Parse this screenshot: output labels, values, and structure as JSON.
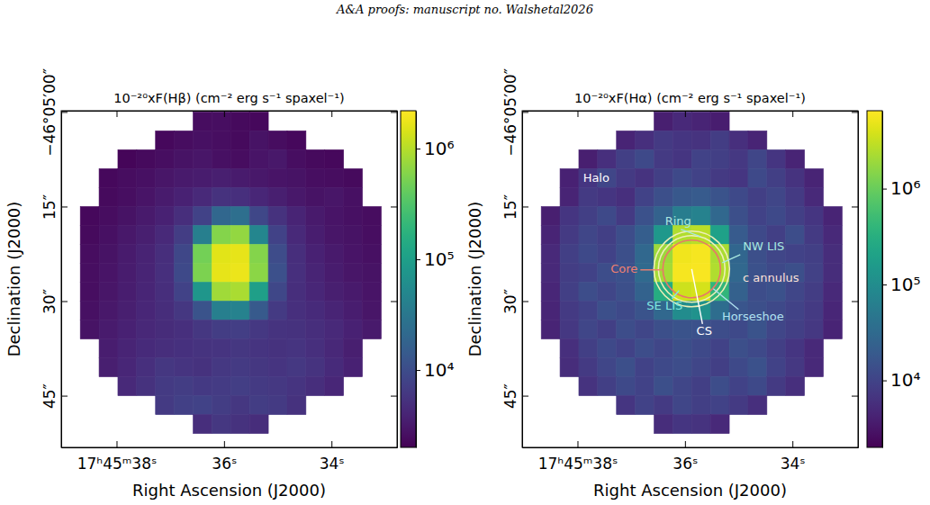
{
  "header": "A&A proofs: manuscript no. Walshetal2026",
  "chart_data": [
    {
      "type": "heatmap",
      "title": "10⁻²⁰xF(Hβ) (cm⁻² erg s⁻¹ spaxel⁻¹)",
      "x_label": "Right Ascension (J2000)",
      "y_label": "Declination (J2000)",
      "xlim": [
        39.03,
        32.78
      ],
      "ylim": [
        -0.2,
        53.2
      ],
      "xticks": [
        {
          "value": 38,
          "label": "17ʰ45ᵐ38ˢ"
        },
        {
          "value": 36,
          "label": "36ˢ"
        },
        {
          "value": 34,
          "label": "34ˢ"
        }
      ],
      "yticks": [
        {
          "value": 0,
          "label": "−46°05′00″"
        },
        {
          "value": 15,
          "label": "15″"
        },
        {
          "value": 30,
          "label": "30″"
        },
        {
          "value": 45,
          "label": "45″"
        }
      ],
      "log": true,
      "colorbar": {
        "lim": [
          2000,
          2200000
        ],
        "ticks": [
          {
            "value": 10000,
            "label": "10⁴"
          },
          {
            "value": 100000,
            "label": "10⁵"
          },
          {
            "value": 1000000,
            "label": "10⁶"
          }
        ]
      },
      "x": [
        38.85,
        38.5,
        38.15,
        37.8,
        37.45,
        37.1,
        36.75,
        36.4,
        36.05,
        35.7,
        35.35,
        35.0,
        34.65,
        34.3,
        33.95,
        33.6,
        33.25,
        32.9
      ],
      "y": [
        1.5,
        4.5,
        7.5,
        10.5,
        13.5,
        16.5,
        19.5,
        22.5,
        25.5,
        28.5,
        31.5,
        34.5,
        37.5,
        40.5,
        43.5,
        46.5,
        49.5,
        52.5
      ],
      "values": [
        [
          null,
          null,
          null,
          null,
          null,
          null,
          null,
          2500,
          2600,
          2400,
          2300,
          null,
          null,
          null,
          null,
          null,
          null,
          null
        ],
        [
          null,
          null,
          null,
          null,
          null,
          2300,
          2500,
          2700,
          2600,
          2400,
          2800,
          2500,
          2300,
          null,
          null,
          null,
          null,
          null
        ],
        [
          null,
          null,
          null,
          2200,
          2400,
          2600,
          2800,
          3000,
          2700,
          2500,
          2900,
          3100,
          2600,
          2400,
          2300,
          null,
          null,
          null
        ],
        [
          null,
          null,
          2300,
          2500,
          2700,
          3000,
          3200,
          3400,
          3600,
          3300,
          3100,
          2900,
          2800,
          2600,
          2500,
          2400,
          null,
          null
        ],
        [
          null,
          null,
          2400,
          2600,
          2900,
          3300,
          3800,
          4500,
          5500,
          5200,
          4300,
          3600,
          3100,
          2800,
          3000,
          2700,
          null,
          null
        ],
        [
          null,
          2300,
          2500,
          2800,
          3200,
          3800,
          5000,
          8000,
          20000,
          25000,
          9000,
          5500,
          4000,
          3200,
          2900,
          2700,
          2500,
          null
        ],
        [
          null,
          2400,
          2700,
          3100,
          3600,
          4500,
          7000,
          40000,
          600000,
          700000,
          50000,
          8000,
          4500,
          3500,
          3000,
          2800,
          2600,
          null
        ],
        [
          null,
          2500,
          2800,
          3300,
          3900,
          5000,
          9000,
          500000,
          1600000,
          1700000,
          600000,
          10000,
          5000,
          3800,
          3200,
          2900,
          2700,
          null
        ],
        [
          null,
          2600,
          2900,
          3400,
          4000,
          5200,
          9500,
          550000,
          1700000,
          1800000,
          650000,
          11000,
          5200,
          4000,
          3400,
          3000,
          2800,
          null
        ],
        [
          null,
          2600,
          3000,
          3500,
          4100,
          5000,
          8000,
          80000,
          800000,
          900000,
          100000,
          9000,
          5000,
          4200,
          3600,
          3200,
          2900,
          null
        ],
        [
          null,
          2700,
          3100,
          3600,
          4200,
          4800,
          6000,
          12000,
          40000,
          45000,
          14000,
          6500,
          5200,
          4600,
          4000,
          3500,
          3000,
          null
        ],
        [
          null,
          2800,
          3300,
          3800,
          4400,
          4700,
          5200,
          6000,
          7000,
          7200,
          6300,
          5600,
          5400,
          5000,
          4500,
          3800,
          3200,
          null
        ],
        [
          null,
          null,
          3500,
          4000,
          4600,
          5000,
          5300,
          5600,
          5800,
          6000,
          5800,
          5500,
          5800,
          5200,
          4400,
          3600,
          null,
          null
        ],
        [
          null,
          null,
          3600,
          4200,
          5200,
          6000,
          5800,
          5500,
          6200,
          6500,
          6000,
          5800,
          6200,
          5600,
          4600,
          3800,
          null,
          null
        ],
        [
          null,
          null,
          null,
          4500,
          5500,
          6500,
          7000,
          6400,
          6800,
          7200,
          6600,
          6300,
          5800,
          5000,
          4200,
          null,
          null,
          null
        ],
        [
          null,
          null,
          null,
          null,
          null,
          6500,
          7500,
          8000,
          7000,
          6000,
          7000,
          6500,
          5500,
          null,
          null,
          null,
          null,
          null
        ],
        [
          null,
          null,
          null,
          null,
          null,
          null,
          null,
          5000,
          6000,
          5500,
          4800,
          null,
          null,
          null,
          null,
          null,
          null,
          null
        ],
        [
          null,
          null,
          null,
          null,
          null,
          null,
          null,
          null,
          null,
          null,
          null,
          null,
          null,
          null,
          null,
          null,
          null,
          null
        ]
      ]
    },
    {
      "type": "heatmap",
      "title": "10⁻²⁰xF(Hα) (cm⁻² erg s⁻¹ spaxel⁻¹)",
      "x_label": "Right Ascension (J2000)",
      "y_label": "Declination (J2000)",
      "xlim": [
        39.03,
        32.78
      ],
      "ylim": [
        -0.2,
        53.2
      ],
      "xticks": [
        {
          "value": 38,
          "label": "17ʰ45ᵐ38ˢ"
        },
        {
          "value": 36,
          "label": "36ˢ"
        },
        {
          "value": 34,
          "label": "34ˢ"
        }
      ],
      "yticks": [
        {
          "value": 0,
          "label": "−46°05′00″"
        },
        {
          "value": 15,
          "label": "15″"
        },
        {
          "value": 30,
          "label": "30″"
        },
        {
          "value": 45,
          "label": "45″"
        }
      ],
      "log": true,
      "colorbar": {
        "lim": [
          2000,
          6500000
        ],
        "ticks": [
          {
            "value": 10000,
            "label": "10⁴"
          },
          {
            "value": 100000,
            "label": "10⁵"
          },
          {
            "value": 1000000,
            "label": "10⁶"
          }
        ]
      },
      "x": [
        38.85,
        38.5,
        38.15,
        37.8,
        37.45,
        37.1,
        36.75,
        36.4,
        36.05,
        35.7,
        35.35,
        35.0,
        34.65,
        34.3,
        33.95,
        33.6,
        33.25,
        32.9
      ],
      "y": [
        1.5,
        4.5,
        7.5,
        10.5,
        13.5,
        16.5,
        19.5,
        22.5,
        25.5,
        28.5,
        31.5,
        34.5,
        37.5,
        40.5,
        43.5,
        46.5,
        49.5,
        52.5
      ],
      "values": [
        [
          null,
          null,
          null,
          null,
          null,
          null,
          null,
          4000,
          5000,
          4500,
          3800,
          null,
          null,
          null,
          null,
          null,
          null,
          null
        ],
        [
          null,
          null,
          null,
          null,
          null,
          4500,
          6000,
          8000,
          7000,
          6500,
          8500,
          6000,
          4500,
          null,
          null,
          null,
          null,
          null
        ],
        [
          null,
          null,
          null,
          4000,
          6000,
          9000,
          12000,
          8000,
          7000,
          10000,
          9000,
          7500,
          11000,
          7000,
          4500,
          null,
          null,
          null
        ],
        [
          null,
          null,
          4200,
          7000,
          11000,
          8000,
          6500,
          9000,
          12000,
          10000,
          8000,
          7000,
          12000,
          9000,
          6500,
          4500,
          null,
          null
        ],
        [
          null,
          null,
          4500,
          8000,
          7000,
          6000,
          10000,
          14000,
          18000,
          20000,
          16000,
          12000,
          9000,
          11000,
          8000,
          5000,
          null,
          null
        ],
        [
          null,
          4000,
          7000,
          9000,
          12000,
          8000,
          15000,
          25000,
          60000,
          70000,
          30000,
          14000,
          10000,
          12000,
          9000,
          7000,
          4500,
          null
        ],
        [
          null,
          4500,
          8000,
          11000,
          9000,
          13000,
          22000,
          150000,
          2500000,
          2800000,
          200000,
          20000,
          12000,
          9000,
          13000,
          8000,
          5000,
          null
        ],
        [
          null,
          5000,
          9000,
          12000,
          10000,
          14000,
          30000,
          2000000,
          5500000,
          5800000,
          2300000,
          28000,
          14000,
          11000,
          10000,
          9000,
          5500,
          null
        ],
        [
          null,
          5000,
          8500,
          10000,
          13000,
          15000,
          32000,
          2200000,
          5800000,
          6000000,
          2500000,
          30000,
          15000,
          12000,
          14000,
          9500,
          5500,
          null
        ],
        [
          null,
          4800,
          9000,
          13000,
          11000,
          14000,
          25000,
          300000,
          3500000,
          3800000,
          400000,
          24000,
          13000,
          15000,
          11000,
          8500,
          5000,
          null
        ],
        [
          null,
          4600,
          8000,
          10000,
          14000,
          12000,
          16000,
          30000,
          100000,
          120000,
          35000,
          17000,
          14000,
          12000,
          10000,
          8000,
          4800,
          null
        ],
        [
          null,
          4500,
          7500,
          11000,
          9000,
          13000,
          11000,
          14000,
          16000,
          15000,
          13000,
          12000,
          16000,
          11000,
          9000,
          7500,
          4500,
          null
        ],
        [
          null,
          null,
          6000,
          9000,
          12000,
          10000,
          13000,
          11000,
          14000,
          12000,
          10000,
          14000,
          12000,
          9000,
          7000,
          5000,
          null,
          null
        ],
        [
          null,
          null,
          5500,
          8000,
          11000,
          14000,
          10000,
          12000,
          13000,
          11000,
          9000,
          12000,
          15000,
          10000,
          7500,
          5000,
          null,
          null
        ],
        [
          null,
          null,
          null,
          6500,
          9000,
          12000,
          10000,
          14000,
          11000,
          9000,
          13000,
          10000,
          12000,
          8000,
          6000,
          null,
          null,
          null
        ],
        [
          null,
          null,
          null,
          null,
          null,
          7000,
          10000,
          8000,
          11000,
          9000,
          10000,
          8000,
          6000,
          null,
          null,
          null,
          null,
          null
        ],
        [
          null,
          null,
          null,
          null,
          null,
          null,
          null,
          5500,
          7000,
          6500,
          5000,
          null,
          null,
          null,
          null,
          null,
          null,
          null
        ],
        [
          null,
          null,
          null,
          null,
          null,
          null,
          null,
          null,
          null,
          null,
          null,
          null,
          null,
          null,
          null,
          null,
          null,
          null
        ]
      ],
      "annotations": [
        {
          "text": "Halo",
          "color": "#ffffff"
        },
        {
          "text": "Ring",
          "color": "#a8e8e0"
        },
        {
          "text": "NW LIS",
          "color": "#a8e8e0"
        },
        {
          "text": "Core",
          "color": "#f08070"
        },
        {
          "text": "c annulus",
          "color": "#fbe0d8"
        },
        {
          "text": "SE LIS",
          "color": "#80e8e0"
        },
        {
          "text": "Horseshoe",
          "color": "#b0e0f0"
        },
        {
          "text": "CS",
          "color": "#ffffff"
        }
      ]
    }
  ]
}
